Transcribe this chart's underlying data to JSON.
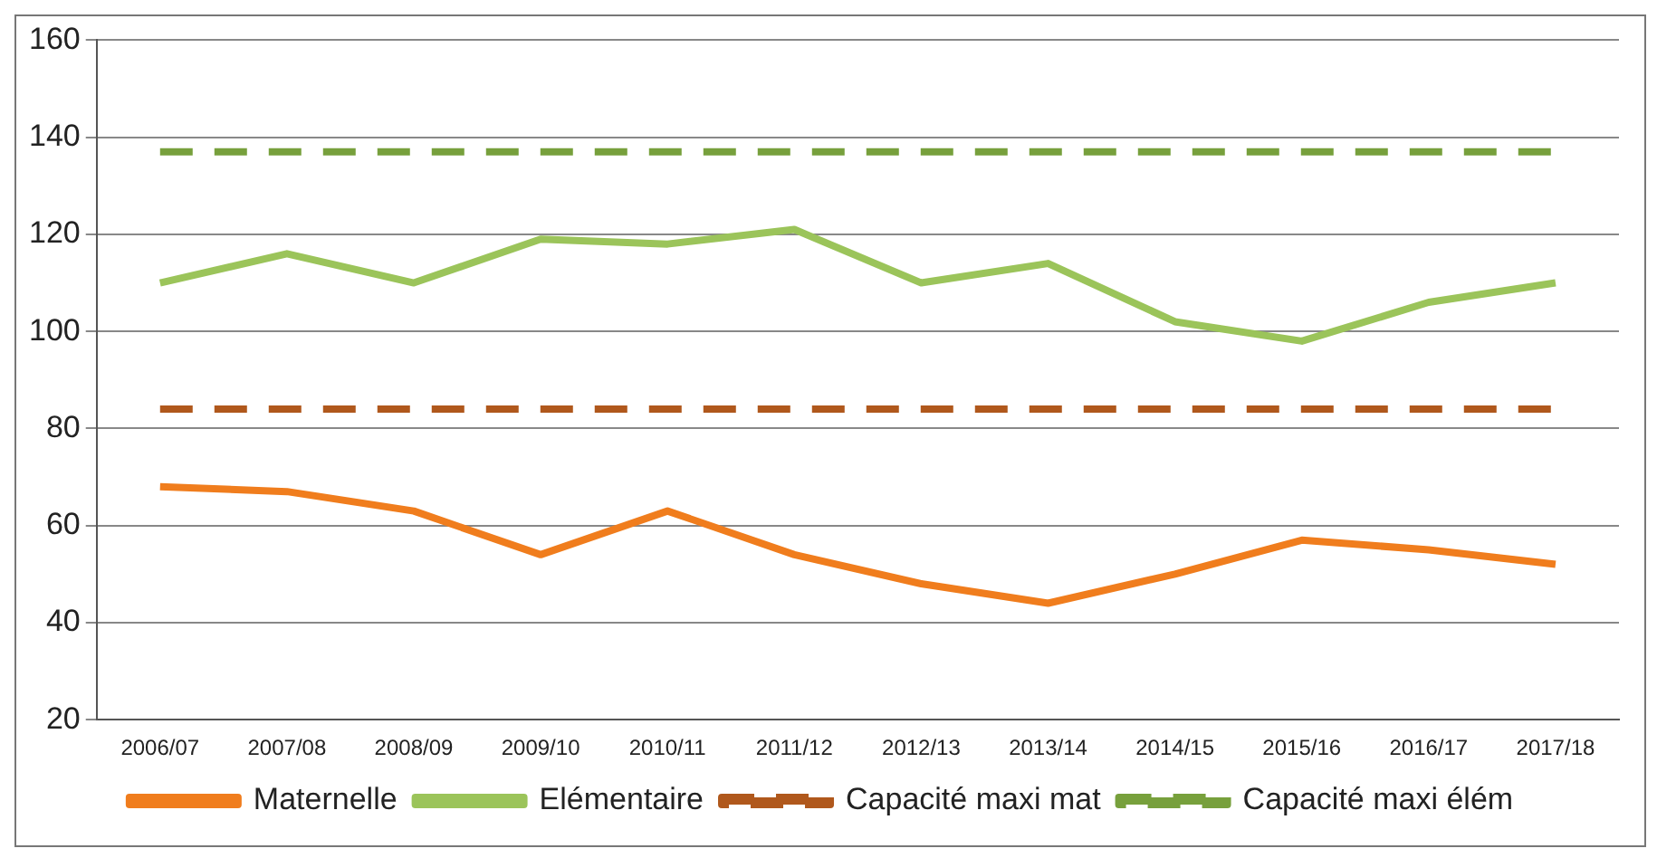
{
  "chart_data": {
    "type": "line",
    "categories": [
      "2006/07",
      "2007/08",
      "2008/09",
      "2009/10",
      "2010/11",
      "2011/12",
      "2012/13",
      "2013/14",
      "2014/15",
      "2015/16",
      "2016/17",
      "2017/18"
    ],
    "series": [
      {
        "name": "Maternelle",
        "color": "#f07d1d",
        "values": [
          68,
          67,
          63,
          54,
          63,
          54,
          48,
          44,
          50,
          57,
          55,
          52
        ]
      },
      {
        "name": "Elémentaire",
        "color": "#9bc45a",
        "values": [
          110,
          116,
          110,
          119,
          118,
          121,
          110,
          114,
          102,
          98,
          106,
          110
        ]
      },
      {
        "name": "Capacité maxi mat",
        "color": "#b0581c",
        "line_style": "dashed",
        "values": [
          84,
          84,
          84,
          84,
          84,
          84,
          84,
          84,
          84,
          84,
          84,
          84
        ]
      },
      {
        "name": "Capacité maxi élém",
        "color": "#77a03c",
        "line_style": "dashed",
        "values": [
          137,
          137,
          137,
          137,
          137,
          137,
          137,
          137,
          137,
          137,
          137,
          137
        ]
      }
    ],
    "ylim": [
      20,
      160
    ],
    "yticks": [
      20,
      40,
      60,
      80,
      100,
      120,
      140,
      160
    ],
    "grid": "y",
    "legend": "bottom",
    "marker": "none",
    "line_style": "solid"
  }
}
